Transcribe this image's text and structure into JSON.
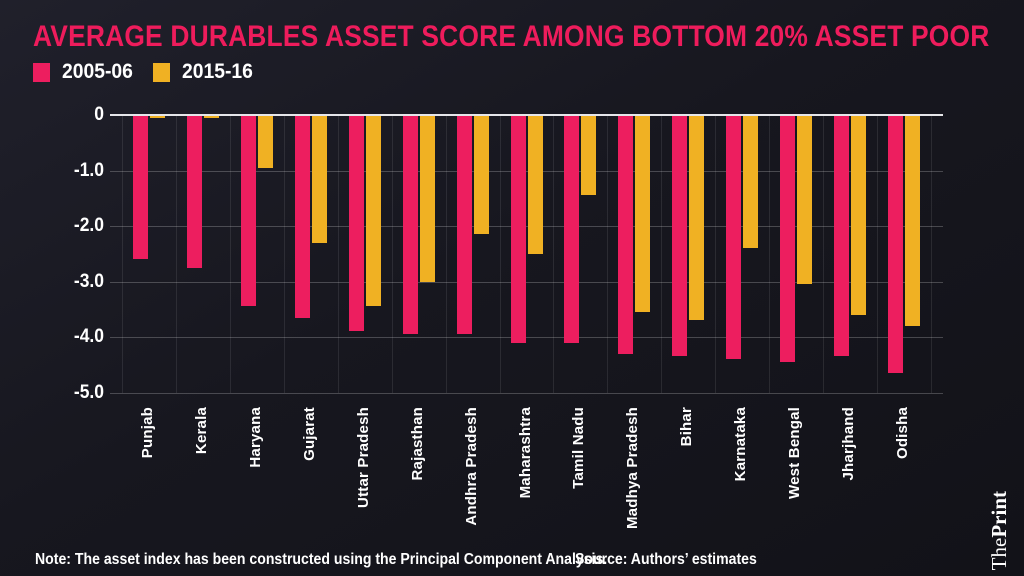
{
  "title": "AVERAGE DURABLES ASSET SCORE AMONG BOTTOM 20% ASSET POOR",
  "colors": {
    "title": "#ee1c5c",
    "series_2005": "#ed1e5f",
    "series_2015": "#f0b123",
    "background": "#17171f",
    "axis_text": "#ffffff",
    "zero_line": "#e6e6ea"
  },
  "chart_data": {
    "type": "bar",
    "title": "AVERAGE DURABLES ASSET SCORE AMONG BOTTOM 20% ASSET POOR",
    "categories": [
      "Punjab",
      "Kerala",
      "Haryana",
      "Gujarat",
      "Uttar Pradesh",
      "Rajasthan",
      "Andhra Pradesh",
      "Maharashtra",
      "Tamil Nadu",
      "Madhya Pradesh",
      "Bihar",
      "Karnataka",
      "West Bengal",
      "Jharjhand",
      "Odisha"
    ],
    "series": [
      {
        "name": "2005-06",
        "color": "#ed1e5f",
        "values": [
          -2.6,
          -2.75,
          -3.45,
          -3.65,
          -3.9,
          -3.95,
          -3.95,
          -4.1,
          -4.1,
          -4.3,
          -4.35,
          -4.4,
          -4.45,
          -4.35,
          -4.65
        ]
      },
      {
        "name": "2015-16",
        "color": "#f0b123",
        "values": [
          -0.05,
          -0.04,
          -0.95,
          -2.3,
          -3.45,
          -3.0,
          -2.15,
          -2.5,
          -1.45,
          -3.55,
          -3.7,
          -2.4,
          -3.05,
          -3.6,
          -3.8
        ]
      }
    ],
    "xlabel": "",
    "ylabel": "",
    "ylim": [
      -5.0,
      0
    ],
    "yticks": [
      {
        "value": 0,
        "label": "0"
      },
      {
        "value": -1,
        "label": "-1.0"
      },
      {
        "value": -2,
        "label": "-2.0"
      },
      {
        "value": -3,
        "label": "-3.0"
      },
      {
        "value": -4,
        "label": "-4.0"
      },
      {
        "value": -5,
        "label": "-5.0"
      }
    ],
    "grid": true,
    "legend_position": "top-left"
  },
  "footer": {
    "note": "Note: The asset index has been constructed using the Principal Component Analysis.",
    "source": "Source: Authors’ estimates"
  },
  "branding": {
    "word_regular": "The",
    "word_bold": "Print"
  }
}
